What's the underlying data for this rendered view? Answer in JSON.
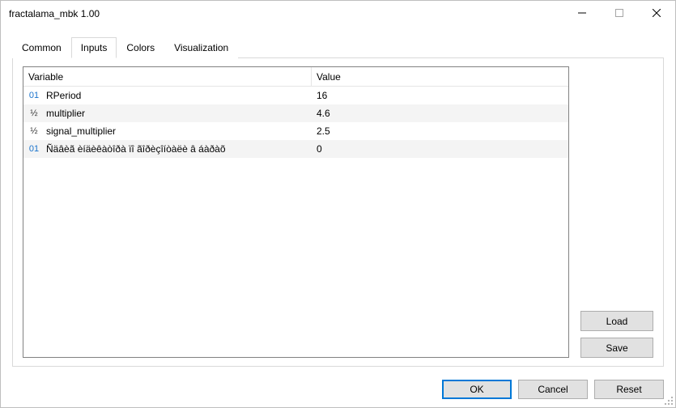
{
  "window": {
    "title": "fractalama_mbk 1.00"
  },
  "tabs": [
    {
      "label": "Common",
      "active": false
    },
    {
      "label": "Inputs",
      "active": true
    },
    {
      "label": "Colors",
      "active": false
    },
    {
      "label": "Visualization",
      "active": false
    }
  ],
  "table": {
    "headers": {
      "variable": "Variable",
      "value": "Value"
    },
    "rows": [
      {
        "type": "int",
        "type_label": "01",
        "name": "RPeriod",
        "value": "16",
        "alt": false
      },
      {
        "type": "real",
        "type_label": "½",
        "name": "multiplier",
        "value": "4.6",
        "alt": true
      },
      {
        "type": "real",
        "type_label": "½",
        "name": "signal_multiplier",
        "value": "2.5",
        "alt": false
      },
      {
        "type": "int",
        "type_label": "01",
        "name": "Ñäâèã èíäèêàòîðà ïî ãîðèçîíòàëè â áàðàõ",
        "value": "0",
        "alt": true
      }
    ]
  },
  "side_buttons": {
    "load": "Load",
    "save": "Save"
  },
  "footer": {
    "ok": "OK",
    "cancel": "Cancel",
    "reset": "Reset"
  },
  "colors": {
    "window_border": "#bfbfbf",
    "tab_border": "#d9d9d9",
    "table_border": "#828282",
    "row_alt_bg": "#f4f4f4",
    "button_bg": "#e1e1e1",
    "button_border": "#adadad",
    "primary_border": "#0078d7",
    "type_int_color": "#1a73cc"
  }
}
